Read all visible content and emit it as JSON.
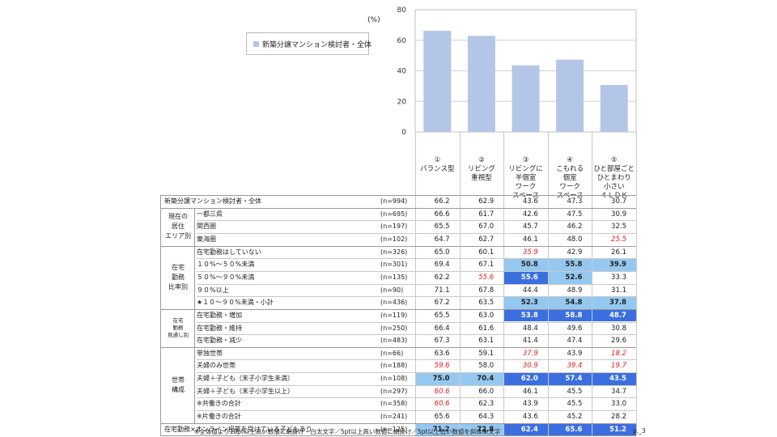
{
  "chart_data": {
    "type": "bar",
    "series": [
      {
        "name": "新築分譲マンション検討者・全体",
        "values": [
          66.2,
          62.9,
          43.6,
          47.3,
          30.7
        ]
      }
    ],
    "categories": [
      "①バランス型",
      "②リビング重視型",
      "③リビングに半個室ワークスペース",
      "④こもれる個室ワークスペース",
      "⑤ひと部屋ごとひとまわり小さい４ＬＤＫ"
    ],
    "category_lines": [
      [
        "①",
        "バランス型"
      ],
      [
        "②",
        "リビング",
        "重視型"
      ],
      [
        "③",
        "リビングに",
        "半個室",
        "ワーク",
        "スペース"
      ],
      [
        "④",
        "こもれる",
        "個室",
        "ワーク",
        "スペース"
      ],
      [
        "⑤",
        "ひと部屋ごと",
        "ひとまわり",
        "小さい",
        "４ＬＤＫ"
      ]
    ],
    "ylim": [
      0,
      80
    ],
    "yticks": [
      0,
      20,
      40,
      60,
      80
    ],
    "unit_label": "(%)",
    "legend": "新築分譲マンション検討者・全体",
    "bar_color": "#b4c6e7"
  },
  "table": {
    "groups": [
      {
        "label_lines": [
          "現在の",
          "居住",
          "エリア別"
        ],
        "small": false
      },
      {
        "label_lines": [
          "在宅",
          "勤務",
          "比率別"
        ],
        "small": false
      },
      {
        "label_lines": [
          "在宅",
          "勤務",
          "見通し別"
        ],
        "small": true
      },
      {
        "label_lines": [
          "世帯",
          "構成"
        ],
        "small": false
      }
    ],
    "rows": [
      {
        "label": "新築分譲マンション検討者・全体",
        "n": "(n=994)",
        "values": [
          "66.2",
          "62.9",
          "43.6",
          "47.3",
          "30.7"
        ],
        "styles": [
          "",
          "",
          "",
          "",
          ""
        ]
      },
      {
        "label": "一都三県",
        "n": "(n=695)",
        "values": [
          "66.6",
          "61.7",
          "42.6",
          "47.5",
          "30.9"
        ],
        "styles": [
          "",
          "",
          "",
          "",
          ""
        ]
      },
      {
        "label": "関西圏",
        "n": "(n=197)",
        "values": [
          "65.5",
          "67.0",
          "45.7",
          "46.2",
          "32.5"
        ],
        "styles": [
          "",
          "",
          "",
          "",
          ""
        ]
      },
      {
        "label": "東海圏",
        "n": "(n=102)",
        "values": [
          "64.7",
          "62.7",
          "46.1",
          "48.0",
          "25.5"
        ],
        "styles": [
          "",
          "",
          "",
          "",
          "low"
        ]
      },
      {
        "label": "在宅勤務はしていない",
        "n": "(n=326)",
        "values": [
          "65.0",
          "60.1",
          "35.9",
          "42.9",
          "26.1"
        ],
        "styles": [
          "",
          "",
          "low",
          "",
          ""
        ]
      },
      {
        "label": "１０%～５０%未満",
        "n": "(n=301)",
        "values": [
          "69.4",
          "67.1",
          "50.8",
          "55.8",
          "39.9"
        ],
        "styles": [
          "",
          "",
          "hl",
          "hl",
          "hl"
        ]
      },
      {
        "label": "５０%～９０%未満",
        "n": "(n=135)",
        "values": [
          "62.2",
          "55.6",
          "55.6",
          "52.6",
          "33.3"
        ],
        "styles": [
          "",
          "low",
          "hd",
          "hl",
          ""
        ]
      },
      {
        "label": "９０%以上",
        "n": "(n=90)",
        "values": [
          "71.1",
          "67.8",
          "44.4",
          "48.9",
          "31.1"
        ],
        "styles": [
          "",
          "",
          "",
          "",
          ""
        ]
      },
      {
        "label": "★１０～９０%未満・小計",
        "n": "(n=436)",
        "values": [
          "67.2",
          "63.5",
          "52.3",
          "54.8",
          "37.8"
        ],
        "styles": [
          "",
          "",
          "hl",
          "hl",
          "hl"
        ]
      },
      {
        "label": "在宅勤務・増加",
        "n": "(n=119)",
        "values": [
          "65.5",
          "63.0",
          "53.8",
          "58.8",
          "48.7"
        ],
        "styles": [
          "",
          "",
          "hd",
          "hd",
          "hd"
        ]
      },
      {
        "label": "在宅勤務・維持",
        "n": "(n=250)",
        "values": [
          "66.4",
          "61.6",
          "48.4",
          "49.6",
          "30.8"
        ],
        "styles": [
          "",
          "",
          "",
          "",
          ""
        ]
      },
      {
        "label": "在宅勤務・減少",
        "n": "(n=483)",
        "values": [
          "67.3",
          "63.1",
          "41.4",
          "47.4",
          "29.6"
        ],
        "styles": [
          "",
          "",
          "",
          "",
          ""
        ]
      },
      {
        "label": "単独世帯",
        "n": "(n=66)",
        "values": [
          "63.6",
          "59.1",
          "37.9",
          "43.9",
          "18.2"
        ],
        "styles": [
          "",
          "",
          "low",
          "",
          "low"
        ]
      },
      {
        "label": "夫婦のみ世帯",
        "n": "(n=188)",
        "values": [
          "59.6",
          "58.0",
          "30.9",
          "39.4",
          "19.7"
        ],
        "styles": [
          "low",
          "",
          "low",
          "low",
          "low"
        ]
      },
      {
        "label": "夫婦＋子ども（末子小学生未満）",
        "n": "(n=108)",
        "values": [
          "75.0",
          "70.4",
          "62.0",
          "57.4",
          "43.5"
        ],
        "styles": [
          "hl",
          "hl",
          "hd",
          "hd",
          "hd"
        ]
      },
      {
        "label": "夫婦＋子ども（末子小学生以上）",
        "n": "(n=297)",
        "values": [
          "60.6",
          "66.0",
          "46.1",
          "45.5",
          "34.7"
        ],
        "styles": [
          "low",
          "",
          "",
          "",
          ""
        ]
      },
      {
        "label": "※共働きの合計",
        "n": "(n=358)",
        "values": [
          "60.6",
          "62.3",
          "43.9",
          "45.5",
          "33.0"
        ],
        "styles": [
          "low",
          "",
          "",
          "",
          ""
        ]
      },
      {
        "label": "※片働きの合計",
        "n": "(n=241)",
        "values": [
          "65.6",
          "64.3",
          "43.6",
          "45.2",
          "28.2"
        ],
        "styles": [
          "",
          "",
          "",
          "",
          ""
        ]
      },
      {
        "label": "在宅勤務×オンライン授業を受けている子どもあり",
        "n": "(n=125)",
        "values": [
          "71.2",
          "72.8",
          "62.4",
          "65.6",
          "51.2"
        ],
        "styles": [
          "hl",
          "hl",
          "hd",
          "hd",
          "hd"
        ]
      }
    ]
  },
  "footnote": "※全体値より10pt以上高い数値に網掛け・白太文字／5pt以上高い数値に網掛け／5pt以上低い数値を斜体朱文字",
  "page_label": "p._3",
  "colors": {
    "bar": "#b4c6e7",
    "highlight_light": "#95c8f0",
    "highlight_dark": "#3b6fe0",
    "low_text": "#e02020"
  }
}
